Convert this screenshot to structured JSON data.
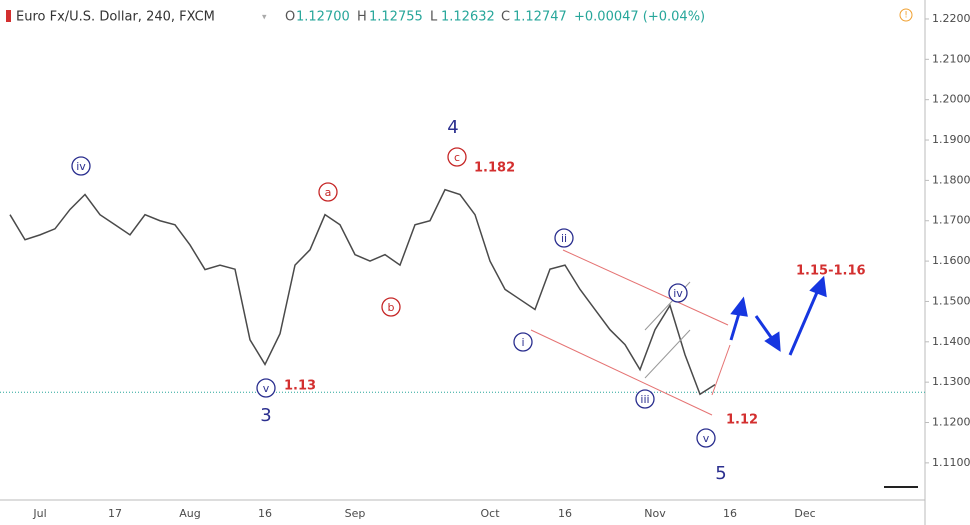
{
  "header": {
    "symbol": "Euro Fx/U.S. Dollar, 240, FXCM",
    "open_label": "O",
    "open": "1.12700",
    "high_label": "H",
    "high": "1.12755",
    "low_label": "L",
    "low": "1.12632",
    "close_label": "C",
    "close": "1.12747",
    "change": "+0.00047 (+0.04%)"
  },
  "chart_data": {
    "type": "line",
    "color": "#4a4a4a",
    "categories": [
      null,
      null,
      "Jul",
      null,
      null,
      null,
      null,
      "17",
      null,
      null,
      null,
      null,
      "Aug",
      null,
      null,
      null,
      null,
      "16",
      null,
      null,
      null,
      null,
      null,
      "Sep",
      null,
      null,
      null,
      null,
      null,
      null,
      null,
      null,
      "Oct",
      null,
      null,
      null,
      null,
      "16",
      null,
      null,
      null,
      null,
      null,
      "Nov",
      null,
      null,
      null,
      null,
      "16",
      null,
      null,
      null,
      null,
      "Dec"
    ],
    "values": [
      1.1715,
      1.1653,
      1.1665,
      1.168,
      1.1728,
      1.1765,
      1.1715,
      1.169,
      1.1665,
      1.1715,
      1.17,
      1.169,
      1.164,
      1.1579,
      1.159,
      1.158,
      1.1405,
      1.1344,
      1.142,
      1.159,
      1.1628,
      1.1715,
      1.169,
      1.1616,
      1.16,
      1.1616,
      1.159,
      1.169,
      1.17,
      1.1777,
      1.1765,
      1.1715,
      1.16,
      1.153,
      1.1505,
      1.148,
      1.158,
      1.159,
      1.153,
      1.148,
      1.143,
      1.1393,
      1.1331,
      1.143,
      1.149,
      1.1368,
      1.127,
      1.1294,
      null,
      null,
      null,
      null,
      null,
      null
    ],
    "ylim": [
      1.1008,
      1.2247
    ],
    "yticks": [
      {
        "value": 1.11,
        "label": "1.11000"
      },
      {
        "value": 1.12,
        "label": "1.12000"
      },
      {
        "value": 1.13,
        "label": "1.13000"
      },
      {
        "value": 1.14,
        "label": "1.14000"
      },
      {
        "value": 1.15,
        "label": "1.15000"
      },
      {
        "value": 1.16,
        "label": "1.16000"
      },
      {
        "value": 1.17,
        "label": "1.17000"
      },
      {
        "value": 1.18,
        "label": "1.18000"
      },
      {
        "value": 1.19,
        "label": "1.19000"
      },
      {
        "value": 1.2,
        "label": "1.20000"
      },
      {
        "value": 1.21,
        "label": "1.21000"
      },
      {
        "value": 1.22,
        "label": "1.22000"
      }
    ],
    "price_line": 1.1275,
    "annotations": [
      {
        "text": "iv",
        "color": "#2b2f8f",
        "circled": true
      },
      {
        "text": "a",
        "color": "#c62828",
        "circled": true
      },
      {
        "text": "c",
        "color": "#c62828",
        "circled": true
      },
      {
        "text": "ii",
        "color": "#2b2f8f",
        "circled": true
      },
      {
        "text": "iv",
        "color": "#2b2f8f",
        "circled": true
      },
      {
        "text": "i",
        "color": "#2b2f8f",
        "circled": true
      },
      {
        "text": "b",
        "color": "#c62828",
        "circled": true
      },
      {
        "text": "iii",
        "color": "#2b2f8f",
        "circled": true
      },
      {
        "text": "v",
        "color": "#2b2f8f",
        "circled": true
      },
      {
        "text": "v",
        "color": "#2b2f8f",
        "circled": true
      },
      {
        "text": "4",
        "color": "#2b2f8f",
        "circled": false
      },
      {
        "text": "3",
        "color": "#2b2f8f",
        "circled": false
      },
      {
        "text": "5",
        "color": "#2b2f8f",
        "circled": false
      },
      {
        "text": "1.182",
        "color": "#d32f2f",
        "circled": false
      },
      {
        "text": "1.13",
        "color": "#d32f2f",
        "circled": false
      },
      {
        "text": "1.12",
        "color": "#d32f2f",
        "circled": false
      },
      {
        "text": "1.15-1.16",
        "color": "#d32f2f",
        "circled": false
      }
    ]
  }
}
